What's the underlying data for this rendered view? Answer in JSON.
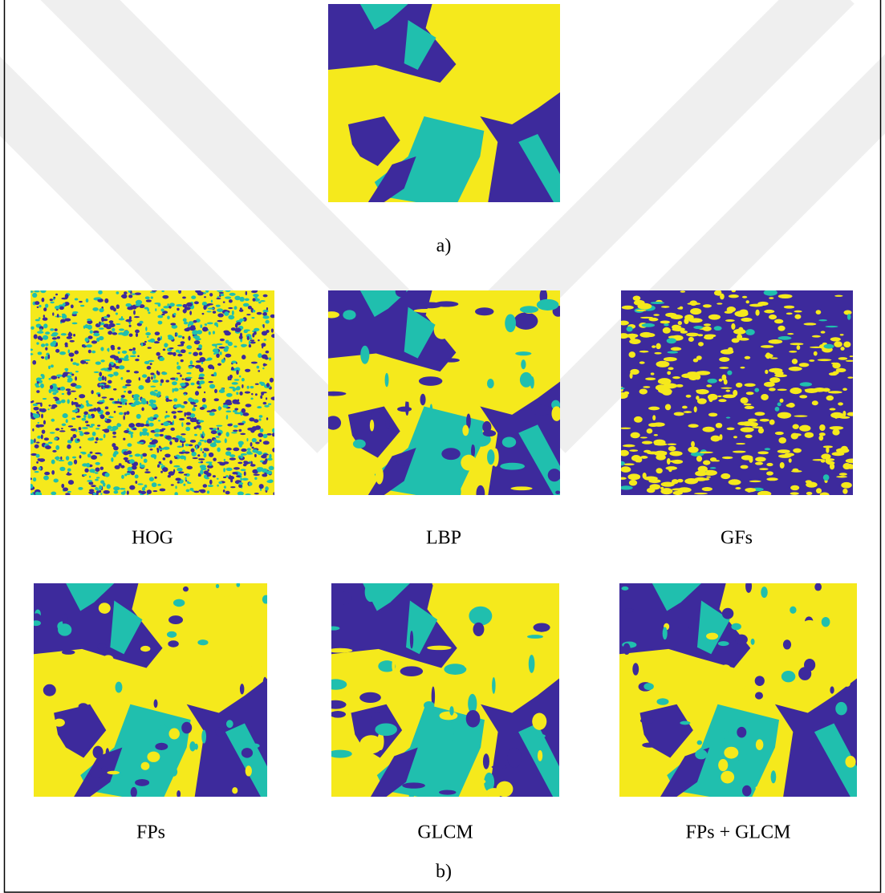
{
  "figure": {
    "part_a": {
      "caption": "a)"
    },
    "part_b": {
      "caption": "b)",
      "panels": [
        "HOG",
        "LBP",
        "GFs",
        "FPs",
        "GLCM",
        "FPs + GLCM"
      ]
    }
  }
}
